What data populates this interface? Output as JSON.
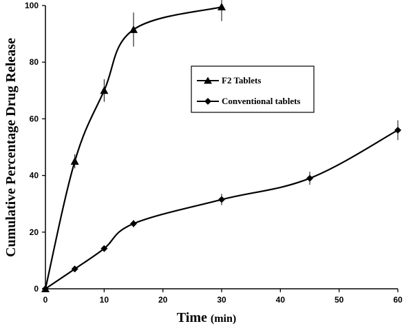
{
  "chart_data": {
    "type": "line",
    "xlabel": "Time",
    "xlabel_unit": "(min)",
    "ylabel": "Cumulative Percentage Drug Release",
    "xlim": [
      0,
      60
    ],
    "ylim": [
      0,
      100
    ],
    "xticks": [
      0,
      10,
      20,
      30,
      40,
      50,
      60
    ],
    "yticks": [
      0,
      20,
      40,
      60,
      80,
      100
    ],
    "grid": false,
    "legend_position": "center",
    "series": [
      {
        "name": "F2 Tablets",
        "marker": "triangle",
        "color": "#000000",
        "x": [
          0,
          5,
          10,
          15,
          30
        ],
        "y": [
          0,
          45,
          70,
          91.5,
          99.5
        ],
        "error": [
          0,
          2.5,
          4,
          6,
          5
        ]
      },
      {
        "name": "Conventional tablets",
        "marker": "diamond",
        "color": "#000000",
        "x": [
          0,
          5,
          10,
          15,
          30,
          45,
          60
        ],
        "y": [
          0,
          7,
          14.2,
          23,
          31.5,
          39,
          56
        ],
        "error": [
          0,
          0.5,
          0.7,
          1.3,
          2,
          2.3,
          3.5
        ]
      }
    ]
  }
}
